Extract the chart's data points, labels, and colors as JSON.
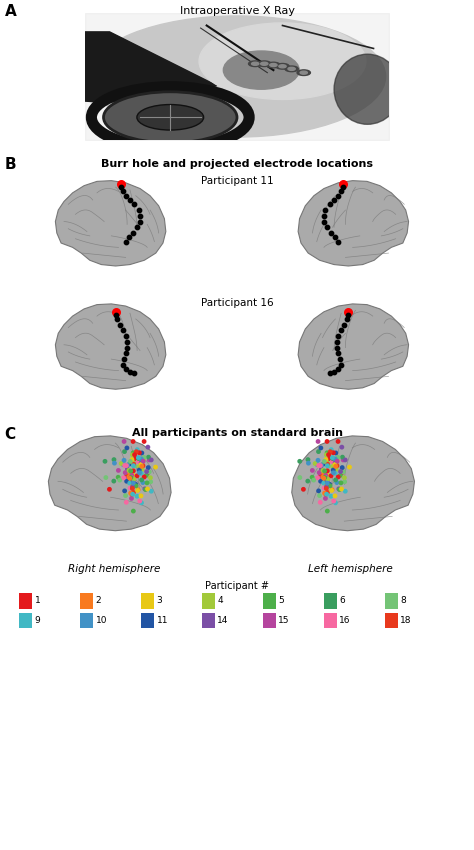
{
  "title_A": "Intraoperative X Ray",
  "title_B": "Burr hole and projected electrode locations",
  "subtitle_B1": "Participant 11",
  "subtitle_B2": "Participant 16",
  "title_C": "All participants on standard brain",
  "label_C1": "Right hemisphere",
  "label_C2": "Left hemisphere",
  "legend_title": "Participant #",
  "legend_items": [
    {
      "label": "1",
      "color": "#e41a1c"
    },
    {
      "label": "2",
      "color": "#f97a1f"
    },
    {
      "label": "3",
      "color": "#e8c815"
    },
    {
      "label": "4",
      "color": "#a2c93a"
    },
    {
      "label": "5",
      "color": "#4daf4a"
    },
    {
      "label": "6",
      "color": "#3a9e5f"
    },
    {
      "label": "8",
      "color": "#74c476"
    },
    {
      "label": "9",
      "color": "#41b8c4"
    },
    {
      "label": "10",
      "color": "#4292c6"
    },
    {
      "label": "11",
      "color": "#2255a4"
    },
    {
      "label": "14",
      "color": "#7b4fa6"
    },
    {
      "label": "15",
      "color": "#b5459e"
    },
    {
      "label": "16",
      "color": "#f768a1"
    },
    {
      "label": "18",
      "color": "#e8391d"
    }
  ],
  "background_color": "#ffffff",
  "brain_face_color": "#aaaaaa",
  "brain_edge_color": "#888888",
  "xray_bg": "#000000",
  "xray_oval_color": "#c0c0c0",
  "xray_dark1": "#1a1a1a",
  "xray_dark2": "#111111",
  "xray_light": "#e8e8e8"
}
